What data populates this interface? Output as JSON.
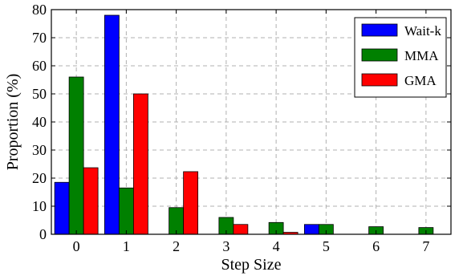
{
  "chart_data": {
    "type": "bar",
    "title": "",
    "xlabel": "Step Size",
    "ylabel": "Proportion (%)",
    "categories": [
      "0",
      "1",
      "2",
      "3",
      "4",
      "5",
      "6",
      "7"
    ],
    "ylim": [
      0,
      80
    ],
    "yticks": [
      "0",
      "10",
      "20",
      "30",
      "40",
      "50",
      "60",
      "70",
      "80"
    ],
    "grid": true,
    "legend_position": "top-right",
    "series": [
      {
        "name": "Wait-k",
        "color": "#0000ff",
        "values": [
          18.5,
          78.0,
          0,
          0,
          0,
          3.5,
          0,
          0
        ]
      },
      {
        "name": "MMA",
        "color": "#008000",
        "values": [
          56.0,
          16.5,
          9.5,
          6.0,
          4.2,
          3.5,
          2.7,
          2.4
        ]
      },
      {
        "name": "GMA",
        "color": "#ff0000",
        "values": [
          23.7,
          50.0,
          22.3,
          3.5,
          0.7,
          0,
          0,
          0
        ]
      }
    ]
  }
}
